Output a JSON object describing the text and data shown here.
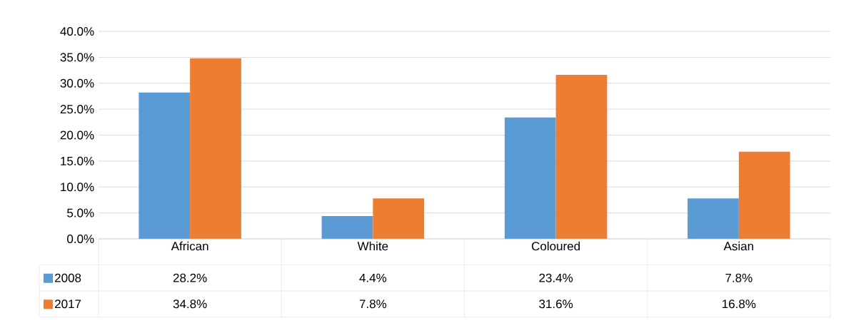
{
  "chart_data": {
    "type": "bar",
    "categories": [
      "African",
      "White",
      "Coloured",
      "Asian"
    ],
    "series": [
      {
        "name": "2008",
        "color": "#5b9bd5",
        "values": [
          28.2,
          4.4,
          23.4,
          7.8
        ],
        "value_labels": [
          "28.2%",
          "4.4%",
          "23.4%",
          "7.8%"
        ]
      },
      {
        "name": "2017",
        "color": "#ed7d31",
        "values": [
          34.8,
          7.8,
          31.6,
          16.8
        ],
        "value_labels": [
          "34.8%",
          "7.8%",
          "31.6%",
          "16.8%"
        ]
      }
    ],
    "ylim": [
      0,
      40
    ],
    "yticks": [
      {
        "value": 0,
        "label": "0.0%"
      },
      {
        "value": 5,
        "label": "5.0%"
      },
      {
        "value": 10,
        "label": "10.0%"
      },
      {
        "value": 15,
        "label": "15.0%"
      },
      {
        "value": 20,
        "label": "20.0%"
      },
      {
        "value": 25,
        "label": "25.0%"
      },
      {
        "value": 30,
        "label": "30.0%"
      },
      {
        "value": 35,
        "label": "35.0%"
      },
      {
        "value": 40,
        "label": "40.0%"
      }
    ],
    "grid": "y",
    "legend": "bottom"
  }
}
